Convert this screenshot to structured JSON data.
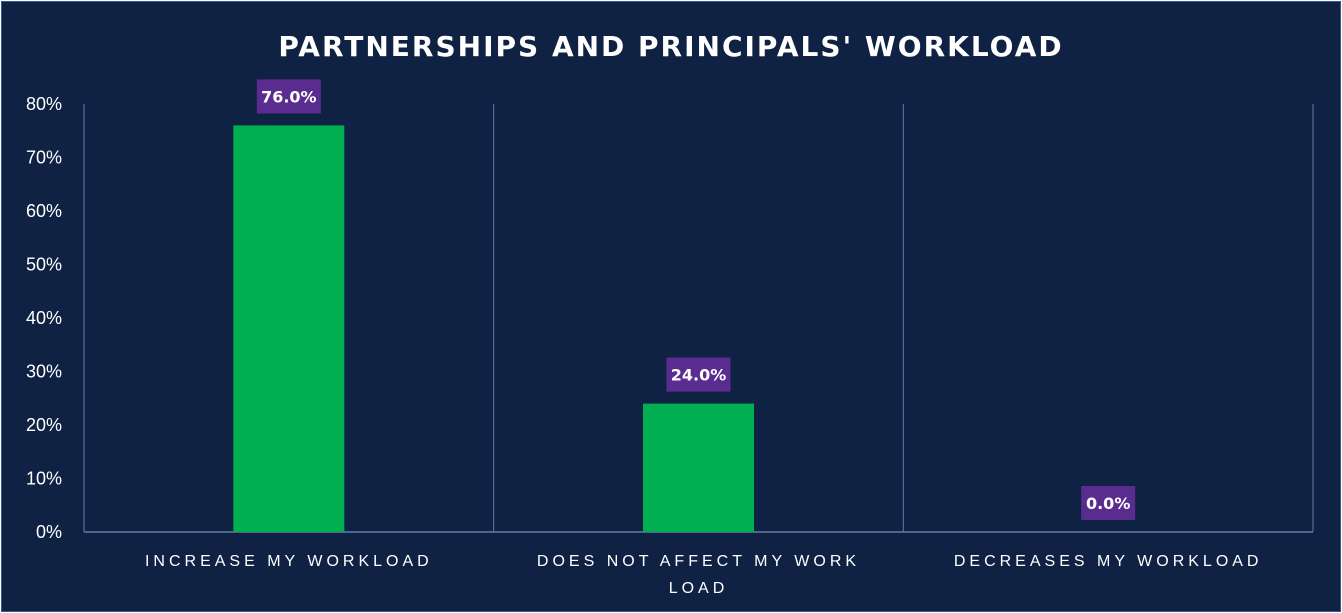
{
  "chart_data": {
    "type": "bar",
    "title": "PARTNERSHIPS AND PRINCIPALS' WORKLOAD",
    "categories": [
      [
        "INCREASE MY WORKLOAD"
      ],
      [
        "DOES NOT AFFECT MY WORK",
        "LOAD"
      ],
      [
        "DECREASES MY WORKLOAD"
      ]
    ],
    "values": [
      76.0,
      24.0,
      0.0
    ],
    "data_labels": [
      "76.0%",
      "24.0%",
      "0.0%"
    ],
    "y_ticks": [
      "0%",
      "10%",
      "20%",
      "30%",
      "40%",
      "50%",
      "60%",
      "70%",
      "80%"
    ],
    "ylim": [
      0,
      80
    ],
    "xlabel": "",
    "ylabel": "",
    "grid": "vertical category separators",
    "legend": "none",
    "colors": {
      "background": "#0f2244",
      "bar": "#00b050",
      "data_label_box": "#5b2c8f",
      "axis": "#5f7ea8",
      "text": "#ffffff"
    }
  }
}
